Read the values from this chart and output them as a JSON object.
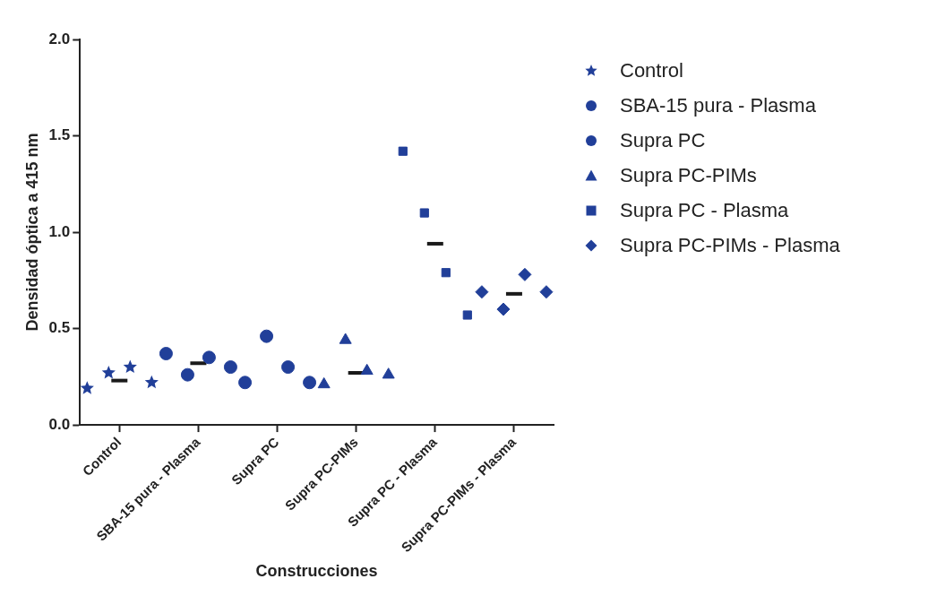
{
  "chart_data": {
    "type": "scatter",
    "xlabel": "Construcciones",
    "ylabel": "Densidad óptica a 415 nm",
    "categories": [
      "Control",
      "SBA-15 pura - Plasma",
      "Supra PC",
      "Supra PC-PIMs",
      "Supra PC - Plasma",
      "Supra PC-PIMs - Plasma"
    ],
    "ylim": [
      0,
      2
    ],
    "yticks": [
      {
        "value": 0,
        "label": "0.0"
      },
      {
        "value": 0.5,
        "label": "0.5"
      },
      {
        "value": 1,
        "label": "1.0"
      },
      {
        "value": 1.5,
        "label": "1.5"
      },
      {
        "value": 2,
        "label": "2.0"
      }
    ],
    "grid": false,
    "legend": "right",
    "series": [
      {
        "name": "Control",
        "color": "#213f99",
        "marker": "star",
        "x": [
          "Control",
          "Control",
          "Control",
          "Control"
        ],
        "values": [
          0.19,
          0.27,
          0.3,
          0.22
        ]
      },
      {
        "name": "SBA-15 pura - Plasma",
        "color": "#213f99",
        "marker": "circle",
        "x": [
          "SBA-15 pura - Plasma",
          "SBA-15 pura - Plasma",
          "SBA-15 pura - Plasma",
          "SBA-15 pura - Plasma"
        ],
        "values": [
          0.37,
          0.26,
          0.35,
          0.3
        ]
      },
      {
        "name": "Supra PC",
        "color": "#213f99",
        "marker": "circle",
        "x": [
          "Supra PC",
          "Supra PC",
          "Supra PC",
          "Supra PC"
        ],
        "values": [
          0.22,
          0.46,
          0.3,
          0.22
        ]
      },
      {
        "name": "Supra PC-PIMs",
        "color": "#213f99",
        "marker": "triangle",
        "x": [
          "Supra PC-PIMs",
          "Supra PC-PIMs",
          "Supra PC-PIMs",
          "Supra PC-PIMs"
        ],
        "values": [
          0.21,
          0.44,
          0.28,
          0.26
        ]
      },
      {
        "name": "Supra PC - Plasma",
        "color": "#213f99",
        "marker": "square",
        "x": [
          "Supra PC - Plasma",
          "Supra PC - Plasma",
          "Supra PC - Plasma",
          "Supra PC - Plasma"
        ],
        "values": [
          1.42,
          1.1,
          0.79,
          0.57
        ]
      },
      {
        "name": "Supra PC-PIMs - Plasma",
        "color": "#213f99",
        "marker": "diamond",
        "x": [
          "Supra PC-PIMs - Plasma",
          "Supra PC-PIMs - Plasma",
          "Supra PC-PIMs - Plasma",
          "Supra PC-PIMs - Plasma"
        ],
        "values": [
          0.69,
          0.6,
          0.78,
          0.69
        ]
      },
      {
        "type": "box",
        "color": "#1a1a1a",
        "boxes": [
          {
            "low": 0.23,
            "q1": 0.23,
            "median": 0.23,
            "q3": 0.23,
            "high": 0.23
          },
          {
            "low": 0.32,
            "q1": 0.32,
            "median": 0.32,
            "q3": 0.32,
            "high": 0.32
          },
          null,
          {
            "low": 0.27,
            "q1": 0.27,
            "median": 0.27,
            "q3": 0.27,
            "high": 0.27
          },
          {
            "low": 0.94,
            "q1": 0.94,
            "median": 0.94,
            "q3": 0.94,
            "high": 0.94
          },
          {
            "low": 0.68,
            "q1": 0.68,
            "median": 0.68,
            "q3": 0.68,
            "high": 0.68
          }
        ]
      }
    ]
  }
}
